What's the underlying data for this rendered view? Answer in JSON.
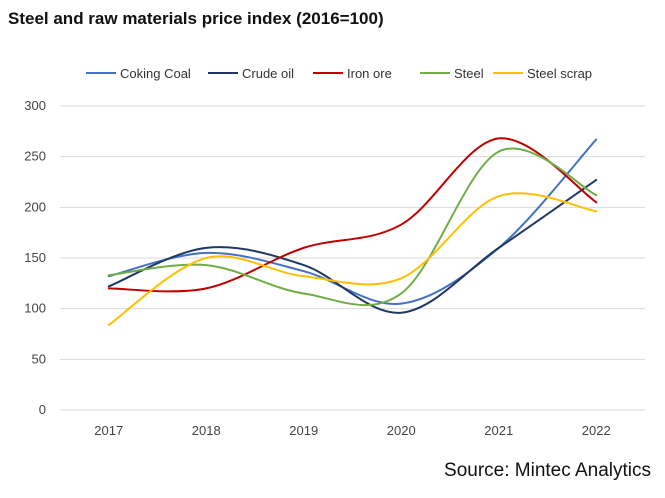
{
  "chart_data": {
    "type": "line",
    "title": "Steel and raw materials price index (2016=100)",
    "source": "Source: Mintec Analytics",
    "xlabel": "",
    "ylabel": "",
    "categories": [
      "2017",
      "2018",
      "2019",
      "2020",
      "2021",
      "2022"
    ],
    "ylim": [
      0,
      300
    ],
    "yticks": [
      0,
      50,
      100,
      150,
      200,
      250,
      300
    ],
    "legend_position": "top",
    "series": [
      {
        "name": "Coking Coal",
        "color": "#4472c4",
        "values": [
          132,
          155,
          137,
          105,
          160,
          267
        ]
      },
      {
        "name": "Crude oil",
        "color": "#1f3864",
        "values": [
          122,
          160,
          143,
          96,
          160,
          227
        ]
      },
      {
        "name": "Iron ore",
        "color": "#c00000",
        "values": [
          120,
          120,
          160,
          183,
          268,
          205
        ]
      },
      {
        "name": "Steel",
        "color": "#70ad47",
        "values": [
          133,
          143,
          115,
          115,
          255,
          212
        ]
      },
      {
        "name": "Steel scrap",
        "color": "#ffc000",
        "values": [
          84,
          150,
          132,
          130,
          211,
          196
        ]
      }
    ]
  }
}
